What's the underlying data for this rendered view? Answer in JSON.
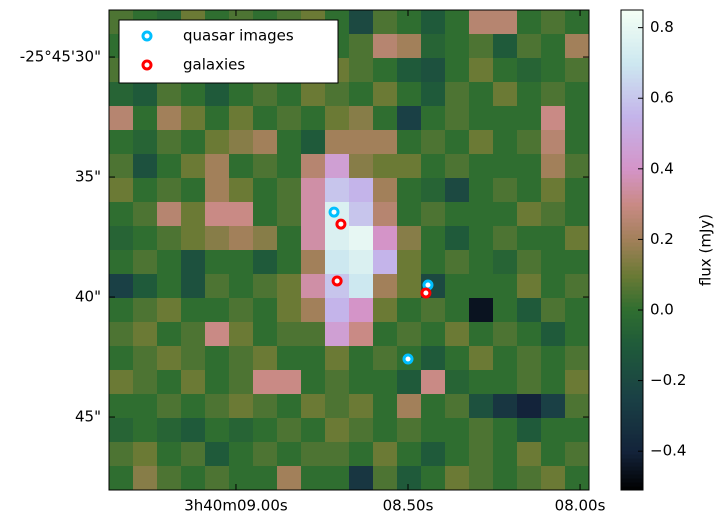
{
  "chart_data": {
    "type": "heatmap",
    "xlim": [
      9.369,
      7.974
    ],
    "ylim": [
      28.04,
      48.04
    ],
    "xticks": [
      {
        "value": 9.0,
        "label": "3h40m09.00s"
      },
      {
        "value": 8.5,
        "label": "08.50s"
      },
      {
        "value": 8.0,
        "label": "08.00s"
      }
    ],
    "yticks": [
      {
        "value": 30,
        "label": "-25°45'30\""
      },
      {
        "value": 35,
        "label": "35\""
      },
      {
        "value": 40,
        "label": "40\""
      },
      {
        "value": 45,
        "label": "45\""
      }
    ],
    "z": [
      [
        0.05,
        0.0,
        -0.05,
        0.1,
        0.0,
        0.05,
        0.0,
        0.05,
        0.1,
        0.0,
        -0.2,
        0.05,
        0.0,
        -0.1,
        0.0,
        0.25,
        0.25,
        0.0,
        0.05,
        0.0
      ],
      [
        0.0,
        0.05,
        0.1,
        0.0,
        0.05,
        0.1,
        0.0,
        0.1,
        0.05,
        0.0,
        0.05,
        0.25,
        0.2,
        -0.05,
        0.0,
        0.05,
        -0.1,
        0.05,
        0.0,
        0.2
      ],
      [
        0.05,
        0.1,
        0.0,
        0.05,
        0.1,
        0.0,
        0.05,
        0.1,
        0.0,
        0.1,
        0.05,
        0.0,
        -0.1,
        -0.15,
        0.0,
        0.1,
        0.0,
        -0.05,
        0.0,
        0.05
      ],
      [
        -0.05,
        -0.1,
        0.05,
        0.0,
        -0.1,
        0.0,
        0.05,
        0.0,
        0.1,
        0.05,
        0.0,
        0.1,
        0.0,
        -0.1,
        0.05,
        0.0,
        0.1,
        0.0,
        0.05,
        0.0
      ],
      [
        0.25,
        0.0,
        0.2,
        0.1,
        0.0,
        0.1,
        0.0,
        0.05,
        0.0,
        0.1,
        0.15,
        0.0,
        -0.25,
        0.0,
        0.05,
        0.0,
        0.0,
        0.0,
        0.3,
        0.0
      ],
      [
        0.0,
        -0.05,
        0.05,
        0.0,
        0.1,
        0.15,
        0.2,
        0.0,
        -0.1,
        0.2,
        0.2,
        0.2,
        0.0,
        0.05,
        0.0,
        0.1,
        0.0,
        0.05,
        0.25,
        0.0
      ],
      [
        0.05,
        -0.15,
        0.0,
        0.1,
        0.2,
        0.0,
        0.05,
        0.0,
        0.25,
        0.45,
        0.15,
        0.1,
        0.1,
        0.0,
        0.05,
        0.0,
        0.0,
        0.0,
        0.2,
        0.05
      ],
      [
        0.1,
        0.0,
        0.05,
        0.0,
        0.2,
        0.1,
        0.0,
        0.05,
        0.35,
        0.6,
        0.55,
        0.2,
        0.0,
        -0.05,
        -0.2,
        0.0,
        0.05,
        0.0,
        0.1,
        0.0
      ],
      [
        0.0,
        0.05,
        0.25,
        0.1,
        0.3,
        0.3,
        0.0,
        0.05,
        0.35,
        0.75,
        0.6,
        0.25,
        0.0,
        0.05,
        0.0,
        0.0,
        0.0,
        0.1,
        0.05,
        0.0
      ],
      [
        -0.05,
        0.0,
        0.05,
        0.1,
        0.15,
        0.2,
        0.15,
        0.0,
        0.35,
        0.75,
        0.8,
        0.4,
        0.15,
        0.0,
        -0.1,
        0.0,
        0.05,
        0.0,
        0.0,
        0.1
      ],
      [
        0.0,
        0.05,
        0.0,
        -0.15,
        0.0,
        0.0,
        -0.1,
        0.0,
        0.2,
        0.7,
        0.75,
        0.55,
        0.1,
        0.0,
        0.05,
        0.0,
        -0.05,
        0.05,
        0.0,
        0.0
      ],
      [
        -0.25,
        -0.1,
        0.0,
        -0.15,
        0.05,
        0.0,
        0.05,
        0.1,
        0.35,
        0.6,
        0.7,
        0.2,
        0.1,
        -0.2,
        0.0,
        0.0,
        0.0,
        0.1,
        0.0,
        0.05
      ],
      [
        0.0,
        0.05,
        0.1,
        0.0,
        0.0,
        0.05,
        0.0,
        0.1,
        0.2,
        0.55,
        0.4,
        0.1,
        0.0,
        0.05,
        0.0,
        -0.45,
        0.0,
        -0.1,
        0.05,
        0.0
      ],
      [
        0.05,
        0.1,
        0.0,
        0.05,
        0.3,
        0.1,
        0.0,
        0.05,
        0.05,
        0.45,
        0.3,
        0.0,
        0.05,
        0.0,
        0.1,
        0.0,
        0.05,
        0.0,
        -0.1,
        0.0
      ],
      [
        0.0,
        0.05,
        0.1,
        0.05,
        0.0,
        0.05,
        0.1,
        0.0,
        0.0,
        0.1,
        0.0,
        0.05,
        0.0,
        -0.1,
        0.0,
        0.1,
        0.0,
        0.05,
        0.0,
        0.05
      ],
      [
        0.1,
        0.05,
        0.0,
        0.1,
        0.0,
        0.05,
        0.3,
        0.3,
        0.0,
        0.05,
        0.0,
        0.0,
        -0.1,
        0.3,
        -0.05,
        0.0,
        0.0,
        0.05,
        0.0,
        0.1
      ],
      [
        0.0,
        0.0,
        0.05,
        0.0,
        0.05,
        0.1,
        0.05,
        0.0,
        0.1,
        0.05,
        0.1,
        0.0,
        0.2,
        0.0,
        0.05,
        -0.15,
        -0.3,
        -0.4,
        -0.25,
        0.05
      ],
      [
        -0.05,
        0.0,
        -0.05,
        -0.1,
        0.0,
        -0.05,
        0.0,
        0.05,
        0.0,
        0.1,
        0.05,
        0.0,
        0.05,
        0.0,
        0.0,
        0.05,
        0.0,
        -0.1,
        0.0,
        0.0
      ],
      [
        0.05,
        0.1,
        0.0,
        0.05,
        -0.1,
        0.0,
        0.05,
        0.0,
        0.05,
        0.05,
        0.0,
        0.1,
        0.0,
        -0.1,
        0.0,
        0.05,
        0.0,
        0.1,
        0.0,
        0.05
      ],
      [
        0.0,
        0.15,
        0.05,
        0.0,
        0.05,
        0.0,
        0.0,
        0.2,
        0.0,
        0.0,
        -0.3,
        0.05,
        -0.1,
        0.0,
        0.1,
        0.05,
        0.0,
        0.05,
        0.1,
        0.0
      ]
    ],
    "colormap": [
      {
        "value": -0.51,
        "color": "#000000"
      },
      {
        "value": -0.4,
        "color": "#13233a"
      },
      {
        "value": -0.25,
        "color": "#1a4045"
      },
      {
        "value": -0.1,
        "color": "#1f5a3a"
      },
      {
        "value": 0.0,
        "color": "#2f6e30"
      },
      {
        "value": 0.1,
        "color": "#6b7a35"
      },
      {
        "value": 0.2,
        "color": "#a2805a"
      },
      {
        "value": 0.3,
        "color": "#c98a85"
      },
      {
        "value": 0.4,
        "color": "#d494c8"
      },
      {
        "value": 0.55,
        "color": "#c4b4ea"
      },
      {
        "value": 0.7,
        "color": "#cde8f0"
      },
      {
        "value": 0.85,
        "color": "#f4fff4"
      }
    ],
    "colorbar": {
      "label": "flux (mJy)",
      "lim": [
        -0.51,
        0.85
      ],
      "ticks": [
        {
          "value": -0.4,
          "label": "−0.4"
        },
        {
          "value": -0.2,
          "label": "−0.2"
        },
        {
          "value": 0.0,
          "label": "0.0"
        },
        0.2,
        0.4,
        0.6,
        0.8
      ]
    },
    "legend": "upper left",
    "series": [
      {
        "name": "quasar images",
        "color": "#00bfff",
        "x": [
          8.715,
          8.442,
          8.5
        ],
        "y": [
          36.46,
          39.5,
          42.58
        ]
      },
      {
        "name": "galaxies",
        "color": "#ff0000",
        "x": [
          8.695,
          8.706,
          8.448
        ],
        "y": [
          36.96,
          39.33,
          39.83
        ]
      }
    ]
  }
}
